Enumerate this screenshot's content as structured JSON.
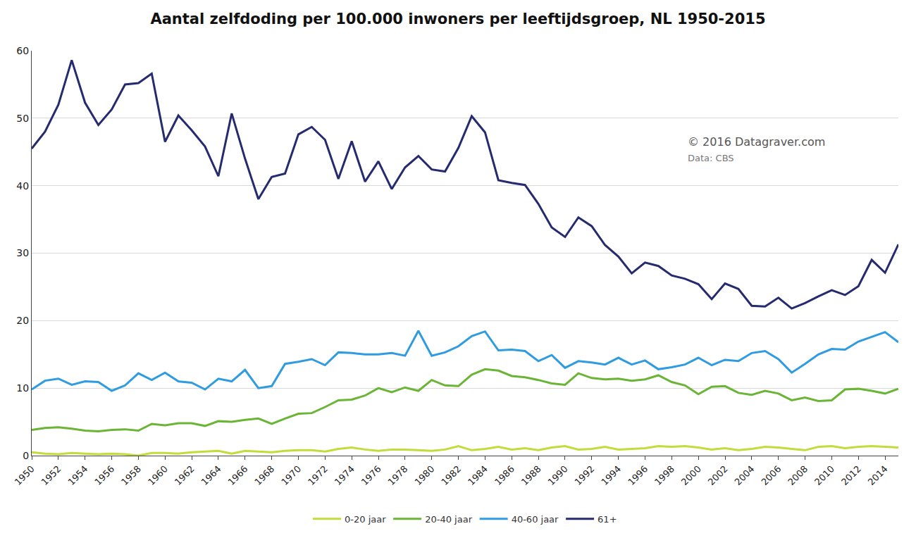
{
  "chart_data": {
    "type": "line",
    "title": "Aantal zelfdoding per 100.000 inwoners per leeftijdsgroep, NL 1950-2015",
    "annotations": [
      "© 2016 Datagraver.com",
      "Data: CBS"
    ],
    "x": [
      1950,
      1951,
      1952,
      1953,
      1954,
      1955,
      1956,
      1957,
      1958,
      1959,
      1960,
      1961,
      1962,
      1963,
      1964,
      1965,
      1966,
      1967,
      1968,
      1969,
      1970,
      1971,
      1972,
      1973,
      1974,
      1975,
      1976,
      1977,
      1978,
      1979,
      1980,
      1981,
      1982,
      1983,
      1984,
      1985,
      1986,
      1987,
      1988,
      1989,
      1990,
      1991,
      1992,
      1993,
      1994,
      1995,
      1996,
      1997,
      1998,
      1999,
      2000,
      2001,
      2002,
      2003,
      2004,
      2005,
      2006,
      2007,
      2008,
      2009,
      2010,
      2011,
      2012,
      2013,
      2014,
      2015
    ],
    "series": [
      {
        "name": "0-20 jaar",
        "color": "#c3dc3a",
        "values": [
          0.5,
          0.3,
          0.2,
          0.4,
          0.3,
          0.2,
          0.3,
          0.2,
          0,
          0.4,
          0.4,
          0.3,
          0.5,
          0.6,
          0.7,
          0.3,
          0.7,
          0.6,
          0.5,
          0.7,
          0.8,
          0.8,
          0.6,
          1.0,
          1.2,
          0.9,
          0.7,
          0.9,
          0.9,
          0.8,
          0.7,
          0.9,
          1.4,
          0.8,
          1.0,
          1.3,
          0.9,
          1.1,
          0.8,
          1.2,
          1.4,
          0.9,
          1.0,
          1.3,
          0.9,
          1.0,
          1.1,
          1.4,
          1.3,
          1.4,
          1.2,
          0.9,
          1.1,
          0.8,
          1.0,
          1.3,
          1.2,
          1.0,
          0.8,
          1.3,
          1.4,
          1.1,
          1.3,
          1.4,
          1.3,
          1.2
        ]
      },
      {
        "name": "20-40 jaar",
        "color": "#6ab535",
        "values": [
          3.8,
          4.1,
          4.2,
          4,
          3.7,
          3.6,
          3.8,
          3.9,
          3.7,
          4.7,
          4.5,
          4.8,
          4.8,
          4.4,
          5.1,
          5,
          5.3,
          5.5,
          4.7,
          5.5,
          6.2,
          6.3,
          7.2,
          8.2,
          8.3,
          8.9,
          10,
          9.4,
          10.1,
          9.6,
          11.2,
          10.4,
          10.3,
          12,
          12.8,
          12.6,
          11.8,
          11.6,
          11.2,
          10.7,
          10.5,
          12.2,
          11.5,
          11.3,
          11.4,
          11.1,
          11.3,
          11.9,
          10.9,
          10.4,
          9.1,
          10.2,
          10.3,
          9.3,
          9,
          9.6,
          9.2,
          8.2,
          8.6,
          8.1,
          8.2,
          9.8,
          9.9,
          9.6,
          9.2,
          9.9
        ]
      },
      {
        "name": "40-60 jaar",
        "color": "#2f9be0",
        "values": [
          9.8,
          11.1,
          11.4,
          10.5,
          11,
          10.9,
          9.6,
          10.4,
          12.2,
          11.2,
          12.3,
          11,
          10.8,
          9.8,
          11.4,
          11,
          12.7,
          10,
          10.3,
          13.6,
          13.9,
          14.3,
          13.4,
          15.3,
          15.2,
          15,
          15,
          15.2,
          14.8,
          18.5,
          14.8,
          15.3,
          16.2,
          17.7,
          18.4,
          15.6,
          15.7,
          15.5,
          14,
          14.9,
          13,
          14,
          13.8,
          13.5,
          14.5,
          13.5,
          14.1,
          12.8,
          13.1,
          13.5,
          14.5,
          13.4,
          14.2,
          14,
          15.2,
          15.5,
          14.3,
          12.3,
          13.6,
          15,
          15.8,
          15.7,
          16.9,
          17.6,
          18.3,
          16.8
        ]
      },
      {
        "name": "61+",
        "color": "#252b6e",
        "values": [
          45.5,
          48,
          52,
          58.6,
          52.3,
          49,
          51.3,
          55,
          55.2,
          56.6,
          46.5,
          50.4,
          48.2,
          45.8,
          41.4,
          50.7,
          44,
          38,
          41.3,
          41.8,
          47.6,
          48.7,
          46.8,
          41,
          46.6,
          40.6,
          43.6,
          39.5,
          42.7,
          44.4,
          42.4,
          42.1,
          45.6,
          50.3,
          47.9,
          40.8,
          40.4,
          40.1,
          37.3,
          33.8,
          32.4,
          35.3,
          34,
          31.2,
          29.5,
          27,
          28.6,
          28.1,
          26.7,
          26.2,
          25.4,
          23.2,
          25.5,
          24.7,
          22.2,
          22.1,
          23.4,
          21.8,
          22.6,
          23.6,
          24.5,
          23.8,
          25.1,
          29,
          27.1,
          31.3
        ]
      }
    ],
    "xlim": [
      1950,
      2015
    ],
    "xticks": [
      1950,
      1952,
      1954,
      1956,
      1958,
      1960,
      1962,
      1964,
      1966,
      1968,
      1970,
      1972,
      1974,
      1976,
      1978,
      1980,
      1982,
      1984,
      1986,
      1988,
      1990,
      1992,
      1994,
      1996,
      1998,
      2000,
      2002,
      2004,
      2006,
      2008,
      2010,
      2012,
      2014
    ],
    "ylim": [
      0,
      60
    ],
    "yticks": [
      0,
      10,
      20,
      30,
      40,
      50,
      60
    ],
    "grid": true,
    "legend": "bottom"
  }
}
